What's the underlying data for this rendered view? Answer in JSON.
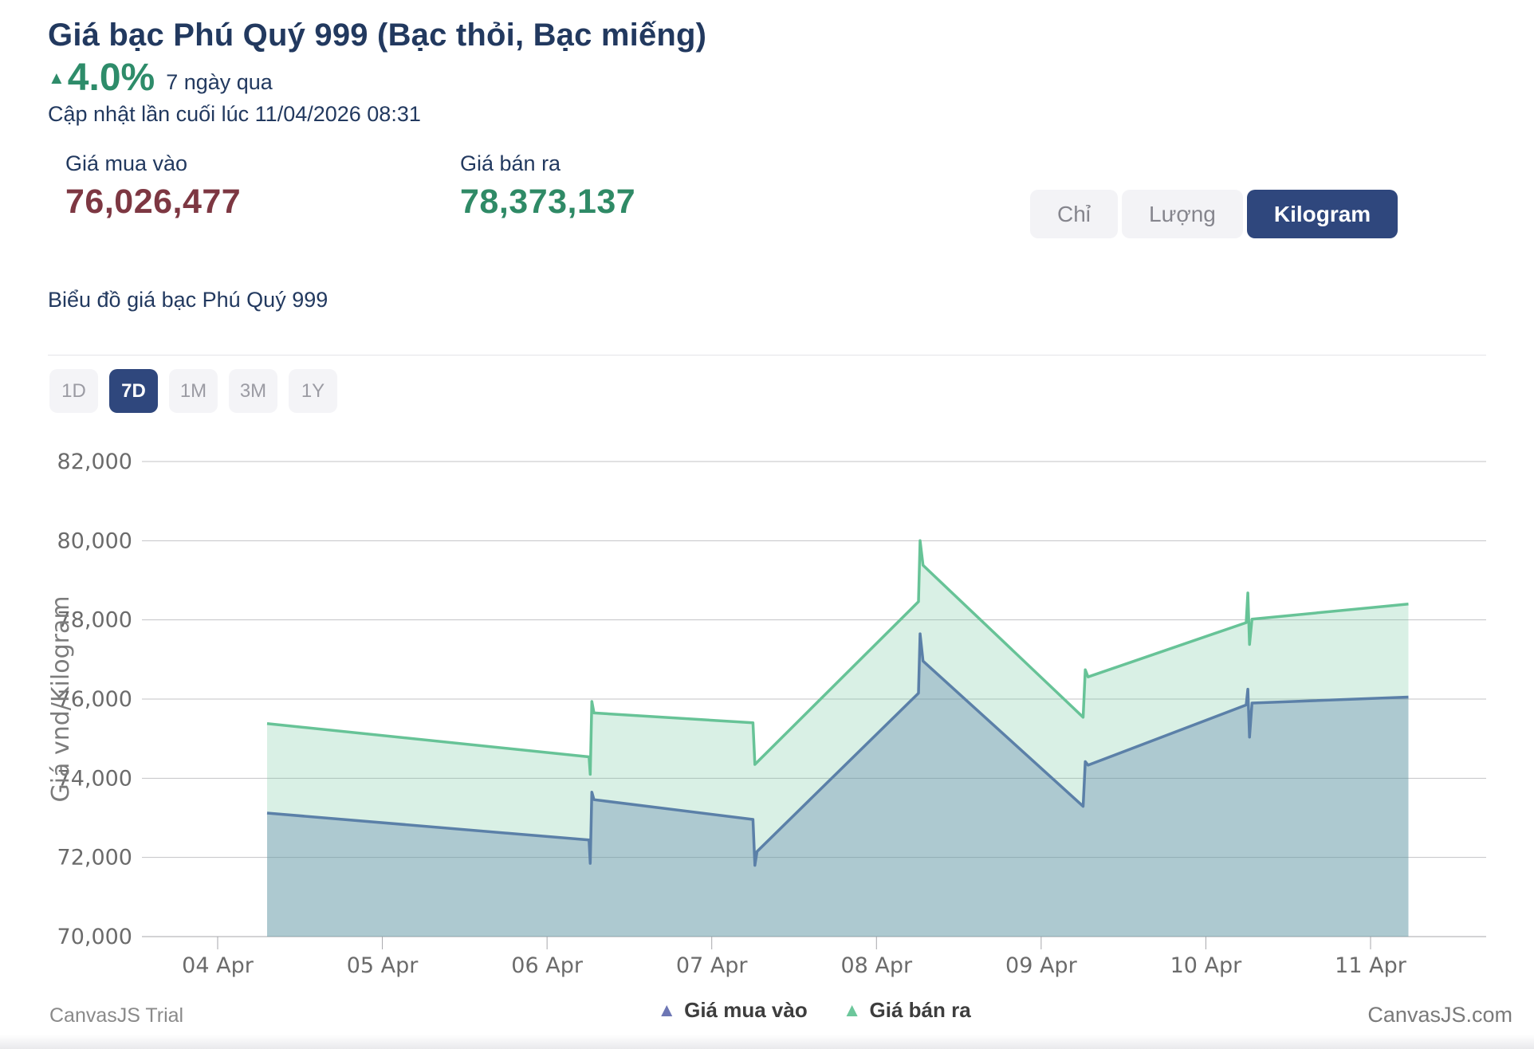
{
  "header": {
    "title": "Giá bạc Phú Quý 999 (Bạc thỏi, Bạc miếng)",
    "change_arrow": "▲",
    "change_percent": "4.0%",
    "change_period": "7 ngày qua",
    "last_updated": "Cập nhật lần cuối lúc 11/04/2026 08:31"
  },
  "prices": {
    "buy": {
      "label": "Giá mua vào",
      "value": "76,026,477"
    },
    "sell": {
      "label": "Giá bán ra",
      "value": "78,373,137"
    }
  },
  "unit_toggle": {
    "options": [
      {
        "label": "Chỉ",
        "active": false
      },
      {
        "label": "Lượng",
        "active": false
      },
      {
        "label": "Kilogram",
        "active": true
      }
    ]
  },
  "chart_section": {
    "subtitle": "Biểu đồ giá bạc Phú Quý 999"
  },
  "range_selector": {
    "options": [
      {
        "label": "1D",
        "active": false
      },
      {
        "label": "7D",
        "active": true
      },
      {
        "label": "1M",
        "active": false
      },
      {
        "label": "3M",
        "active": false
      },
      {
        "label": "1Y",
        "active": false
      }
    ]
  },
  "watermarks": {
    "trial": "CanvasJS Trial",
    "site": "CanvasJS.com"
  },
  "colors": {
    "navy_text": "#22395f",
    "green_accent": "#2e8c6a",
    "buy_value_red": "#7d3742",
    "sell_value_green": "#2f8a66",
    "active_button_bg": "#2f477d",
    "inactive_button_bg": "#f3f3f6",
    "buy_line": "#5b80a8",
    "sell_line": "#67c397",
    "gridline": "#c3c3c6"
  },
  "chart_data": {
    "type": "area",
    "title": "",
    "xlabel": "",
    "ylabel": "Giá vnd/Kilogram",
    "ylim": [
      70000,
      82000
    ],
    "grid": true,
    "legend_position": "bottom-center",
    "x_axis_note": "x = days since 04 Apr 00:00; daily price resets occur around 08:30 each morning",
    "yticks": [
      {
        "value": 70000,
        "label": "70,000"
      },
      {
        "value": 72000,
        "label": "72,000"
      },
      {
        "value": 74000,
        "label": "74,000"
      },
      {
        "value": 76000,
        "label": "76,000"
      },
      {
        "value": 78000,
        "label": "78,000"
      },
      {
        "value": 80000,
        "label": "80,000"
      },
      {
        "value": 82000,
        "label": "82,000"
      }
    ],
    "xticks": [
      "04 Apr",
      "05 Apr",
      "06 Apr",
      "07 Apr",
      "08 Apr",
      "09 Apr",
      "10 Apr",
      "11 Apr"
    ],
    "series": [
      {
        "name": "Giá mua vào",
        "marker": "▲",
        "line_color": "#5b80a8",
        "fill_color": "#5b80a8",
        "fill_opacity": 0.35,
        "legend_color": "#6d76b4",
        "points": [
          [
            0.3,
            73120
          ],
          [
            2.255,
            72440
          ],
          [
            2.262,
            71850
          ],
          [
            2.272,
            73650
          ],
          [
            2.285,
            73460
          ],
          [
            3.25,
            72960
          ],
          [
            3.262,
            71800
          ],
          [
            3.275,
            72150
          ],
          [
            4.255,
            76150
          ],
          [
            4.265,
            77650
          ],
          [
            4.283,
            76960
          ],
          [
            5.255,
            73290
          ],
          [
            5.268,
            74420
          ],
          [
            5.285,
            74330
          ],
          [
            6.245,
            75850
          ],
          [
            6.255,
            76250
          ],
          [
            6.265,
            75040
          ],
          [
            6.28,
            75900
          ],
          [
            7.23,
            76050
          ]
        ]
      },
      {
        "name": "Giá bán ra",
        "marker": "▲",
        "line_color": "#67c397",
        "fill_color": "#6dc49b",
        "fill_opacity": 0.26,
        "legend_color": "#6cc79b",
        "points": [
          [
            0.3,
            75380
          ],
          [
            2.255,
            74540
          ],
          [
            2.262,
            74100
          ],
          [
            2.272,
            75940
          ],
          [
            2.285,
            75650
          ],
          [
            3.25,
            75400
          ],
          [
            3.262,
            74350
          ],
          [
            4.255,
            78460
          ],
          [
            4.265,
            80000
          ],
          [
            4.283,
            79380
          ],
          [
            5.255,
            75540
          ],
          [
            5.268,
            76740
          ],
          [
            5.285,
            76560
          ],
          [
            6.245,
            77930
          ],
          [
            6.255,
            78680
          ],
          [
            6.265,
            77380
          ],
          [
            6.28,
            78020
          ],
          [
            7.23,
            78400
          ]
        ]
      }
    ]
  }
}
